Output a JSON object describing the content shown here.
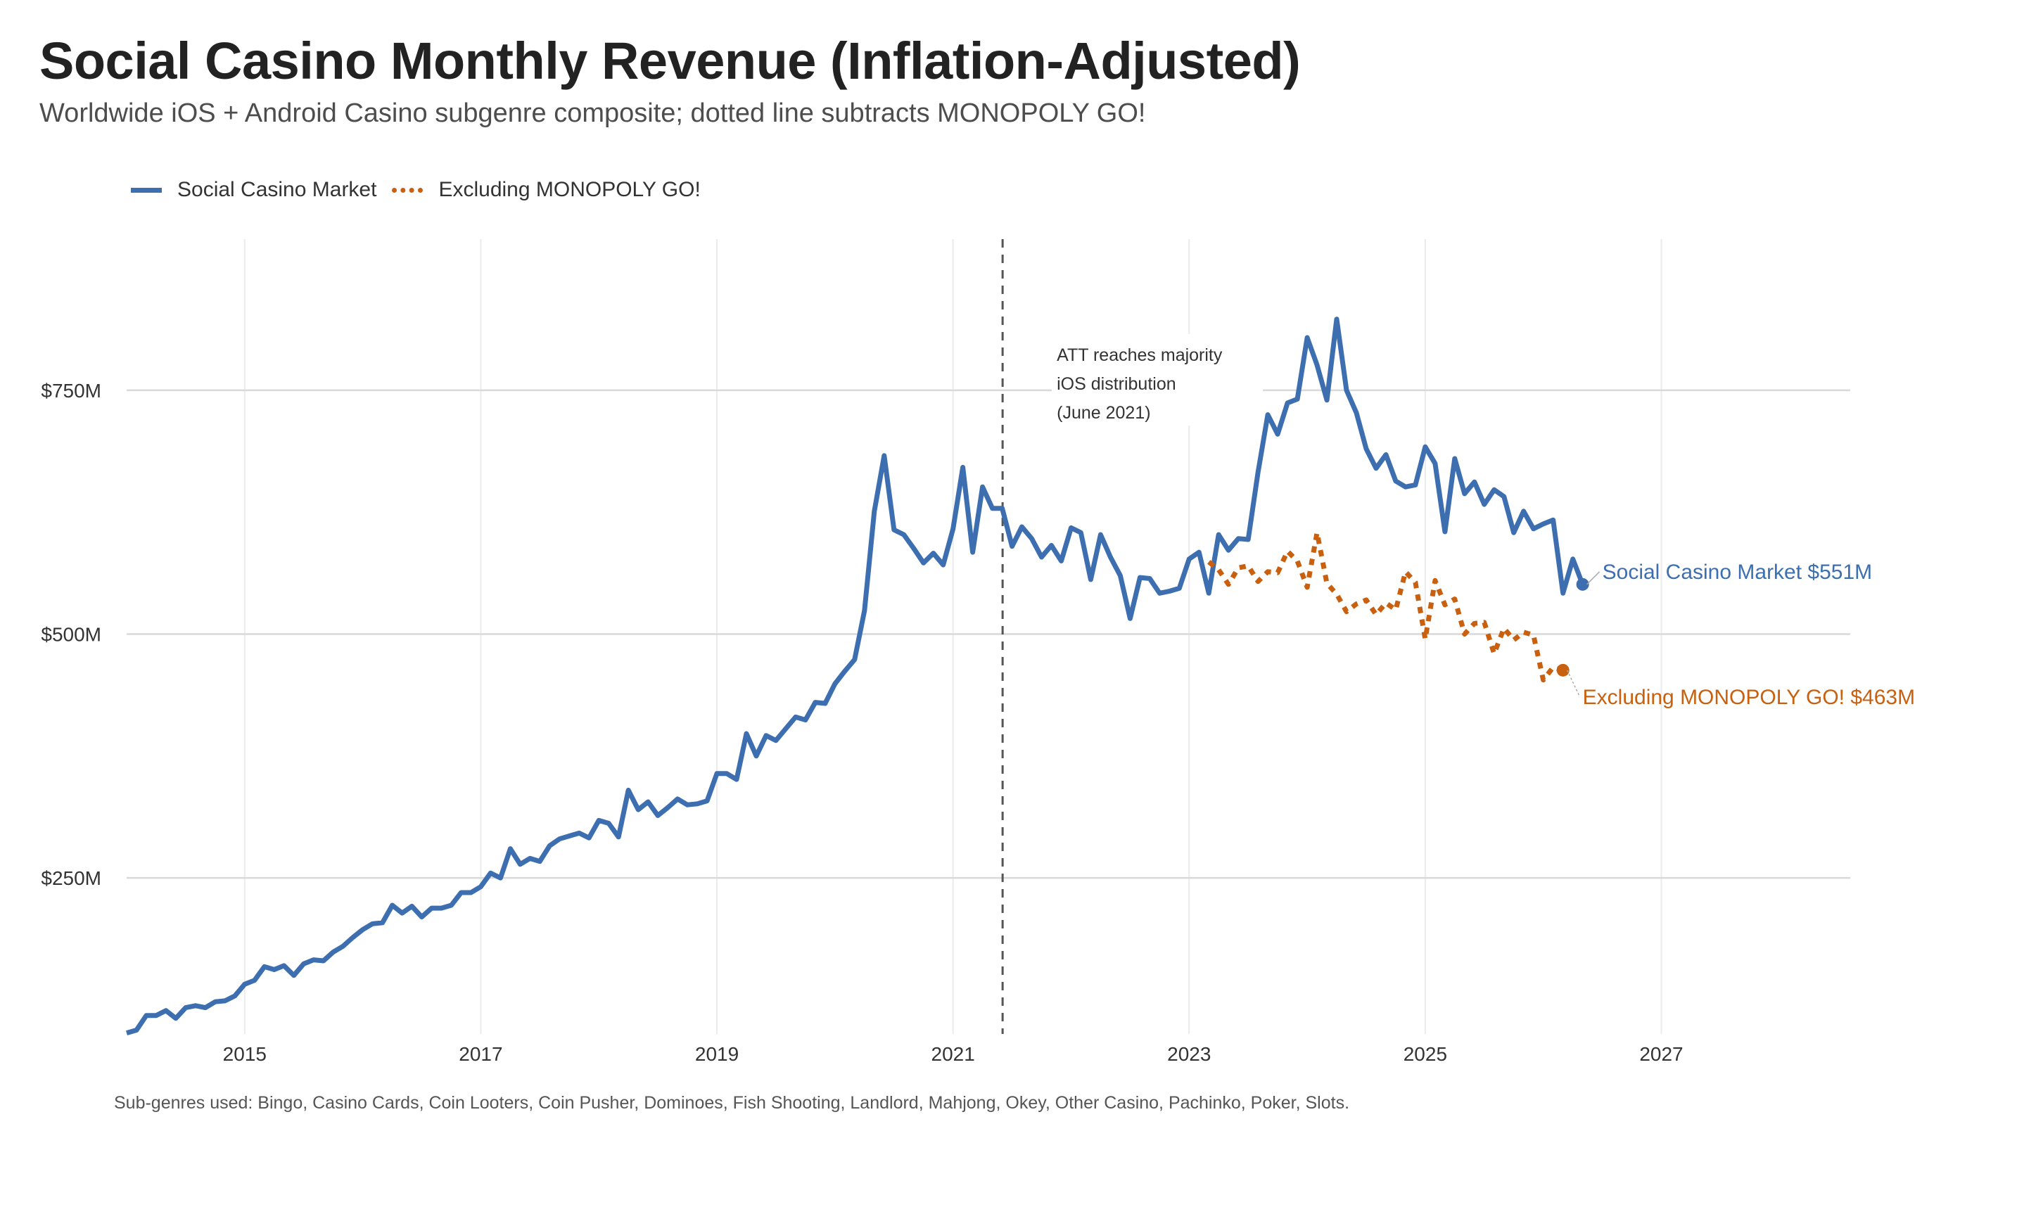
{
  "chart_data": {
    "type": "line",
    "title": "Social Casino Monthly Revenue (Inflation-Adjusted)",
    "subtitle": "Worldwide iOS + Android Casino subgenre composite; dotted line subtracts MONOPOLY GO!",
    "xlabel": "",
    "ylabel": "",
    "x_ticks": [
      "2015",
      "2017",
      "2019",
      "2021",
      "2023",
      "2025",
      "2027"
    ],
    "y_ticks": [
      "$250M",
      "$500M",
      "$750M"
    ],
    "y_tick_values": [
      250,
      500,
      750
    ],
    "xlim": [
      2014.0,
      2028.6
    ],
    "ylim": [
      90,
      905
    ],
    "grid": true,
    "legend_position": "top-left",
    "series": [
      {
        "name": "Social Casino Market",
        "color": "#3d6fb0",
        "style": "solid",
        "x_start": "2014-01",
        "values": [
          91,
          94,
          109,
          109,
          114,
          106,
          117,
          119,
          117,
          123,
          124,
          129,
          141,
          145,
          159,
          156,
          160,
          150,
          162,
          166,
          165,
          174,
          180,
          189,
          197,
          203,
          204,
          222,
          214,
          221,
          210,
          219,
          219,
          222,
          235,
          235,
          241,
          255,
          250,
          280,
          264,
          270,
          267,
          283,
          290,
          293,
          296,
          291,
          309,
          306,
          292,
          340,
          320,
          328,
          314,
          322,
          331,
          325,
          326,
          329,
          357,
          357,
          351,
          398,
          375,
          396,
          391,
          403,
          415,
          412,
          430,
          429,
          449,
          462,
          474,
          524,
          626,
          683,
          607,
          602,
          588,
          573,
          583,
          571,
          608,
          671,
          584,
          651,
          629,
          629,
          590,
          610,
          598,
          579,
          591,
          575,
          609,
          604,
          556,
          602,
          579,
          560,
          516,
          558,
          557,
          542,
          544,
          547,
          577,
          584,
          542,
          602,
          586,
          598,
          597,
          666,
          725,
          705,
          737,
          741,
          804,
          776,
          740,
          823,
          750,
          727,
          690,
          670,
          684,
          657,
          651,
          653,
          692,
          675,
          605,
          680,
          644,
          656,
          633,
          648,
          641,
          604,
          626,
          608,
          613,
          617,
          542,
          577,
          551
        ],
        "end_label": "Social Casino Market  $551M"
      },
      {
        "name": "Excluding MONOPOLY GO!",
        "color": "#c8600f",
        "style": "dotted",
        "x_start": "2023-03",
        "values": [
          574,
          566,
          551,
          568,
          570,
          554,
          564,
          563,
          585,
          575,
          548,
          604,
          552,
          541,
          523,
          531,
          535,
          520,
          532,
          525,
          564,
          553,
          495,
          555,
          530,
          536,
          500,
          511,
          512,
          480,
          506,
          494,
          502,
          499,
          453,
          466,
          463
        ],
        "end_label": "Excluding MONOPOLY GO!  $463M"
      }
    ],
    "annotation": {
      "label_lines": [
        "ATT reaches majority",
        "iOS distribution",
        "(June 2021)"
      ],
      "x": 2021.42
    },
    "caption": "Sub-genres used: Bingo, Casino Cards, Coin Looters, Coin Pusher, Dominoes, Fish Shooting, Landlord, Mahjong, Okey, Other Casino, Pachinko, Poker, Slots."
  }
}
